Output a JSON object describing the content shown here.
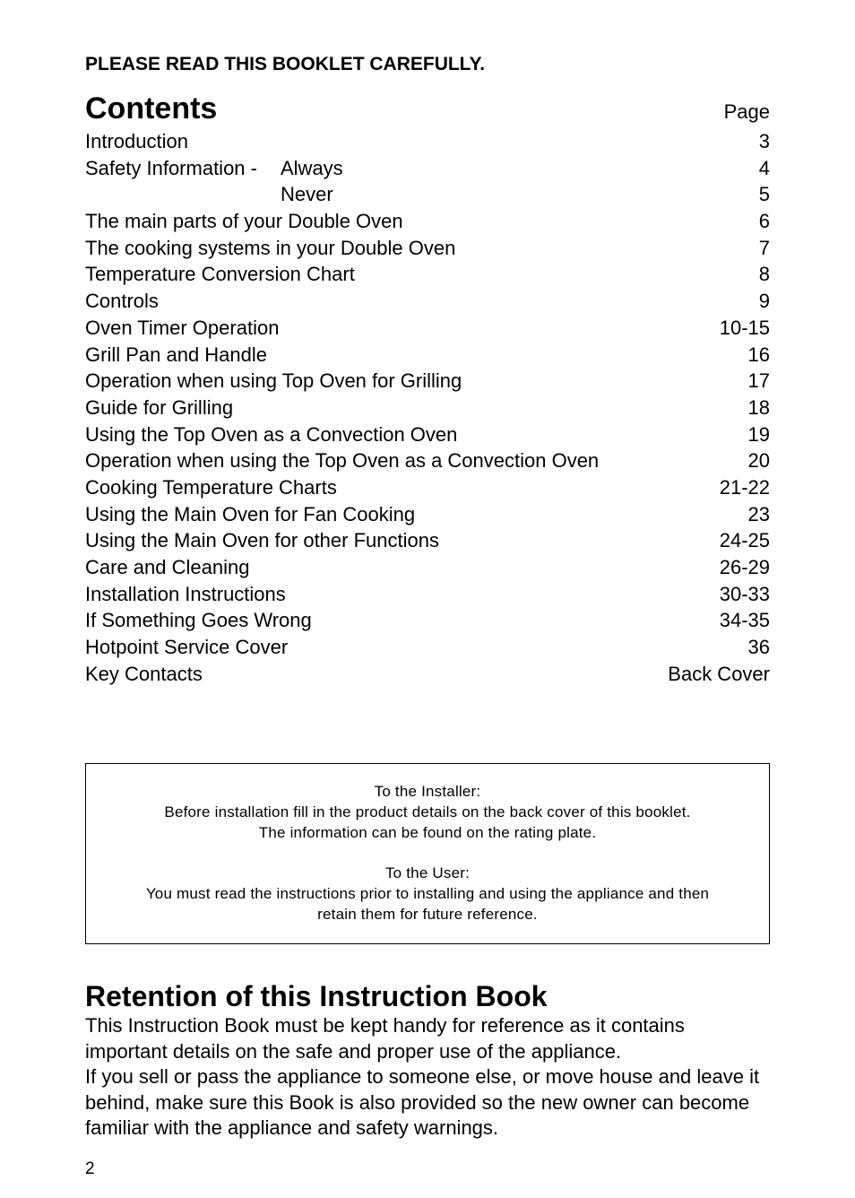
{
  "header_instruction": "PLEASE READ THIS BOOKLET CAREFULLY.",
  "contents_title": "Contents",
  "page_label": "Page",
  "toc": [
    {
      "label": "Introduction",
      "page": "3"
    }
  ],
  "safety_prefix": "Safety Information -",
  "safety_rows": [
    {
      "suffix": "Always",
      "page": "4",
      "show_prefix": true
    },
    {
      "suffix": "Never",
      "page": "5",
      "show_prefix": false
    }
  ],
  "toc_rest": [
    {
      "label": "The main parts of your Double Oven",
      "page": "6"
    },
    {
      "label": "The cooking systems in your Double Oven",
      "page": "7"
    },
    {
      "label": "Temperature Conversion Chart",
      "page": "8"
    },
    {
      "label": "Controls",
      "page": "9"
    },
    {
      "label": "Oven Timer Operation",
      "page": "10-15"
    },
    {
      "label": "Grill Pan and Handle",
      "page": "16"
    },
    {
      "label": "Operation when using Top Oven for Grilling",
      "page": "17"
    },
    {
      "label": "Guide for Grilling",
      "page": "18"
    },
    {
      "label": "Using the Top Oven as a Convection Oven",
      "page": "19"
    },
    {
      "label": "Operation when using the Top Oven as a Convection Oven",
      "page": "20"
    },
    {
      "label": "Cooking Temperature Charts",
      "page": "21-22"
    },
    {
      "label": "Using the Main Oven for Fan Cooking",
      "page": "23"
    },
    {
      "label": "Using the Main Oven for other Functions",
      "page": "24-25"
    },
    {
      "label": "Care and Cleaning",
      "page": "26-29"
    },
    {
      "label": "Installation Instructions",
      "page": "30-33"
    },
    {
      "label": "If Something Goes Wrong",
      "page": "34-35"
    },
    {
      "label": "Hotpoint Service Cover",
      "page": "36"
    },
    {
      "label": "Key Contacts",
      "page": "Back Cover"
    }
  ],
  "installer_box": {
    "installer_title": "To the Installer:",
    "installer_line1": "Before installation fill in the product details on the back cover of this booklet.",
    "installer_line2": "The information can be found on the rating plate.",
    "user_title": "To the User:",
    "user_line1": "You must read the instructions prior to installing and using the appliance and then",
    "user_line2": "retain them for future reference."
  },
  "retention": {
    "title": "Retention of this Instruction Book",
    "p1": "This Instruction Book must be kept handy for reference as it contains important details on the safe and proper use of the appliance.",
    "p2": "If you sell or pass the appliance to someone else, or move house and leave it behind, make sure this Book is also provided so the new owner can become familiar with the appliance and safety warnings."
  },
  "page_number": "2",
  "styling": {
    "body_width": 954,
    "body_height": 1336,
    "background_color": "#ffffff",
    "text_color": "#000000",
    "body_padding": "60px 95px 40px 95px",
    "header_fontsize": 21,
    "contents_title_fontsize": 34,
    "toc_fontsize": 22,
    "toc_line_height": 1.35,
    "safety_prefix_width": 218,
    "installer_border": "1px solid #000000",
    "installer_fontsize": 17,
    "installer_margintop": 85,
    "retention_title_fontsize": 32,
    "retention_body_fontsize": 22,
    "page_number_fontsize": 19
  }
}
